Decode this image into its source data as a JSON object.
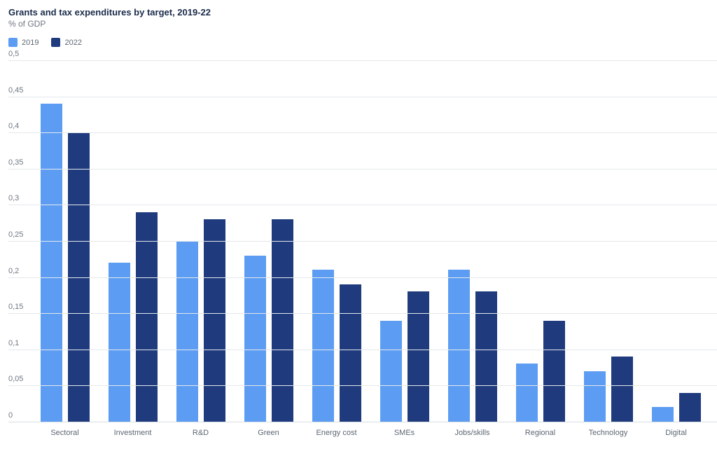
{
  "chart_data": {
    "type": "bar",
    "title": "Grants and tax expenditures by target, 2019-22",
    "subtitle": "% of GDP",
    "categories": [
      "Sectoral",
      "Investment",
      "R&D",
      "Green",
      "Energy cost",
      "SMEs",
      "Jobs/skills",
      "Regional",
      "Technology",
      "Digital"
    ],
    "series": [
      {
        "name": "2019",
        "color": "#5c9df3",
        "values": [
          0.44,
          0.22,
          0.25,
          0.23,
          0.21,
          0.14,
          0.21,
          0.08,
          0.07,
          0.02
        ]
      },
      {
        "name": "2022",
        "color": "#1f3b7e",
        "values": [
          0.4,
          0.29,
          0.28,
          0.28,
          0.19,
          0.18,
          0.18,
          0.14,
          0.09,
          0.04
        ]
      }
    ],
    "ylim": [
      0,
      0.5
    ],
    "ytick_step": 0.05,
    "ytick_labels": [
      "0",
      "0,05",
      "0,1",
      "0,15",
      "0,2",
      "0,25",
      "0,3",
      "0,35",
      "0,4",
      "0,45",
      "0,5"
    ],
    "grid": true,
    "legend_position": "top-left",
    "colors": {
      "title": "#1a2b4a",
      "subtitle": "#6f7783",
      "gridline": "#e4e7ea",
      "tick_label": "#6f7783",
      "category_label": "#5d6773"
    }
  }
}
